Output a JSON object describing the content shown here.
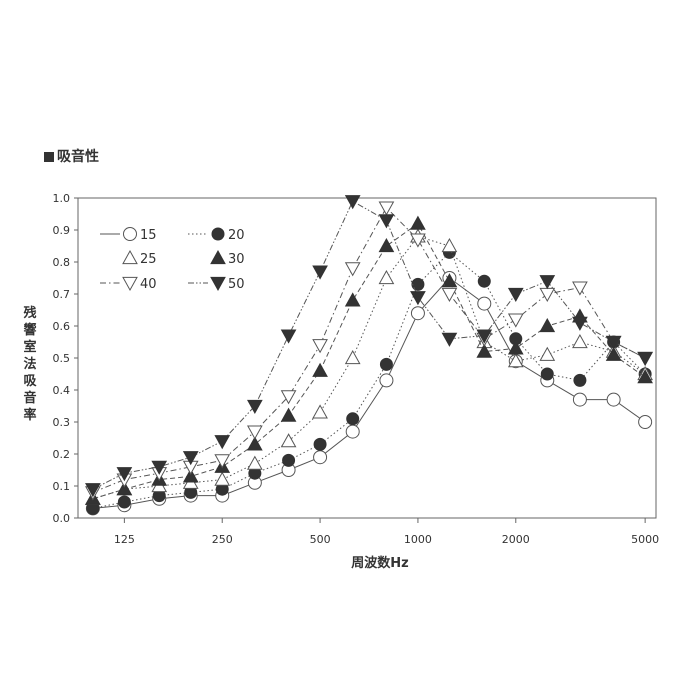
{
  "heading": "吸音性",
  "chart_data": {
    "type": "line",
    "title": "吸音性",
    "xlabel": "周波数Hz",
    "ylabel": "残響室法吸音率",
    "xscale": "log",
    "xlim": [
      90,
      5400
    ],
    "ylim": [
      0,
      1.0
    ],
    "x_ticks": [
      125,
      250,
      500,
      1000,
      2000,
      5000
    ],
    "x_tick_labels": [
      "125",
      "250",
      "500",
      "1000",
      "2000",
      "5000"
    ],
    "y_ticks": [
      0,
      0.1,
      0.2,
      0.3,
      0.4,
      0.5,
      0.6,
      0.7,
      0.8,
      0.9,
      1.0
    ],
    "y_tick_labels": [
      "0.0",
      "0.1",
      "0.2",
      "0.3",
      "0.4",
      "0.5",
      "0.6",
      "0.7",
      "0.8",
      "0.9",
      "1.0"
    ],
    "legend_placement": "top-left",
    "x": [
      100,
      125,
      160,
      200,
      250,
      315,
      400,
      500,
      630,
      800,
      1000,
      1250,
      1600,
      2000,
      2500,
      3150,
      4000,
      5000
    ],
    "series": [
      {
        "name": "15",
        "marker": "circle-open",
        "line": "solid",
        "values": [
          0.03,
          0.04,
          0.06,
          0.07,
          0.07,
          0.11,
          0.15,
          0.19,
          0.27,
          0.43,
          0.64,
          0.75,
          0.67,
          0.49,
          0.43,
          0.37,
          0.37,
          0.3
        ]
      },
      {
        "name": "20",
        "marker": "circle-filled",
        "line": "dotted",
        "values": [
          0.03,
          0.05,
          0.07,
          0.08,
          0.09,
          0.14,
          0.18,
          0.23,
          0.31,
          0.48,
          0.73,
          0.83,
          0.74,
          0.56,
          0.45,
          0.43,
          0.55,
          0.45
        ]
      },
      {
        "name": "25",
        "marker": "triangle-up-open",
        "line": "dotted",
        "values": [
          0.06,
          0.09,
          0.1,
          0.11,
          0.12,
          0.17,
          0.24,
          0.33,
          0.5,
          0.75,
          0.88,
          0.85,
          0.55,
          0.49,
          0.51,
          0.55,
          0.52,
          0.45
        ]
      },
      {
        "name": "30",
        "marker": "triangle-up-filled",
        "line": "dashed",
        "values": [
          0.06,
          0.09,
          0.12,
          0.13,
          0.16,
          0.23,
          0.32,
          0.46,
          0.68,
          0.85,
          0.92,
          0.74,
          0.52,
          0.53,
          0.6,
          0.63,
          0.51,
          0.44
        ]
      },
      {
        "name": "40",
        "marker": "triangle-down-open",
        "line": "dashdot",
        "values": [
          0.08,
          0.12,
          0.14,
          0.16,
          0.18,
          0.27,
          0.38,
          0.54,
          0.78,
          0.97,
          0.87,
          0.7,
          0.56,
          0.62,
          0.7,
          0.72,
          0.55,
          0.5
        ]
      },
      {
        "name": "50",
        "marker": "triangle-down-filled",
        "line": "dashdotdot",
        "values": [
          0.09,
          0.14,
          0.16,
          0.19,
          0.24,
          0.35,
          0.57,
          0.77,
          0.99,
          0.93,
          0.69,
          0.56,
          0.57,
          0.7,
          0.74,
          0.61,
          0.55,
          0.5
        ]
      }
    ]
  }
}
